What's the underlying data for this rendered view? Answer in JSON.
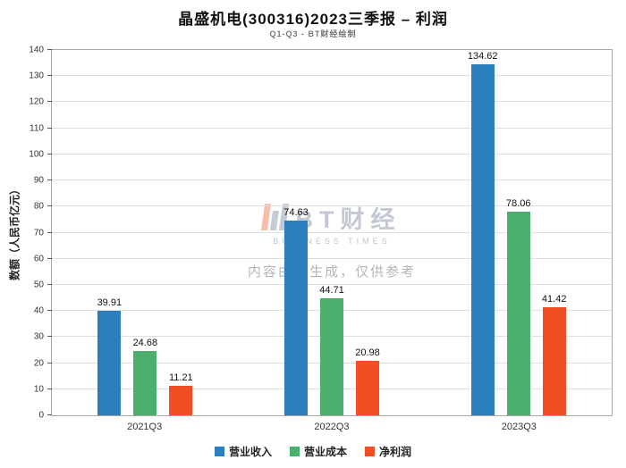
{
  "title": "晶盛机电(300316)2023三季报 – 利润",
  "subtitle": "Q1-Q3 - BT财经绘制",
  "chart_data": {
    "type": "bar",
    "categories": [
      "2021Q3",
      "2022Q3",
      "2023Q3"
    ],
    "series": [
      {
        "name": "营业收入",
        "color": "#2b7fbe",
        "values": [
          39.91,
          74.63,
          134.62
        ]
      },
      {
        "name": "营业成本",
        "color": "#4daf6e",
        "values": [
          24.68,
          44.71,
          78.06
        ]
      },
      {
        "name": "净利润",
        "color": "#f04f23",
        "values": [
          11.21,
          20.98,
          41.42
        ]
      }
    ],
    "ylabel": "数额（人民币亿元）",
    "xlabel": "",
    "ylim": [
      0,
      140
    ],
    "ytick_step": 10,
    "grid": true,
    "legend_position": "bottom"
  },
  "watermark": {
    "logo_text": "BT财经",
    "logo_sub": "BUSINESS TIMES",
    "note": "内容由AI生成，仅供参考"
  }
}
